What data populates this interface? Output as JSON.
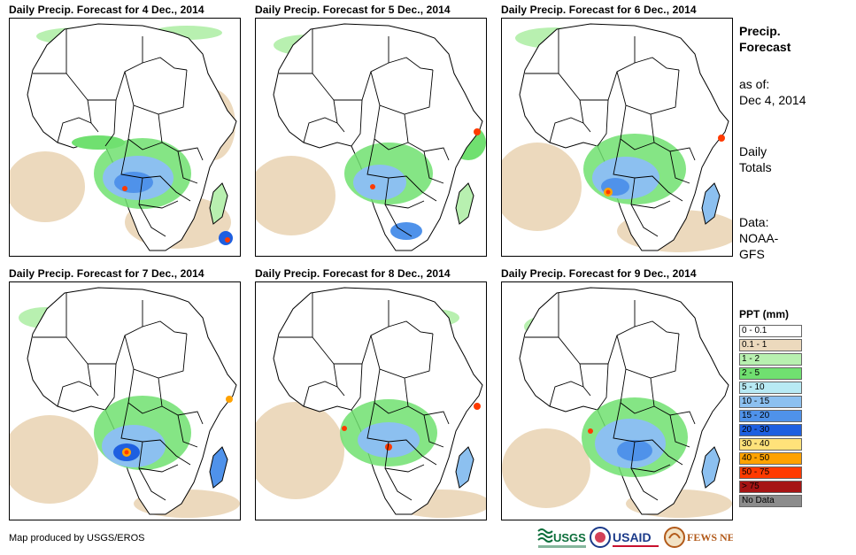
{
  "panels": [
    {
      "title": "Daily Precip. Forecast for 4 Dec., 2014"
    },
    {
      "title": "Daily Precip. Forecast for 5 Dec., 2014"
    },
    {
      "title": "Daily Precip. Forecast for 6 Dec., 2014"
    },
    {
      "title": "Daily Precip. Forecast for 7 Dec., 2014"
    },
    {
      "title": "Daily Precip. Forecast for 8 Dec., 2014"
    },
    {
      "title": "Daily Precip. Forecast for 9 Dec., 2014"
    }
  ],
  "sidebar": {
    "heading_line1": "Precip.",
    "heading_line2": "Forecast",
    "asof_line1": "as of:",
    "asof_line2": "Dec 4, 2014",
    "totals_line1": "Daily",
    "totals_line2": "Totals",
    "data_line1": "Data:",
    "data_line2": "NOAA-",
    "data_line3": "GFS"
  },
  "legend": {
    "title": "PPT (mm)",
    "items": [
      {
        "label": "0 - 0.1",
        "color": "#ffffff"
      },
      {
        "label": "0.1 - 1",
        "color": "#ecd9bd"
      },
      {
        "label": "1 - 2",
        "color": "#b8f0b0"
      },
      {
        "label": "2 - 5",
        "color": "#70e070"
      },
      {
        "label": "5 - 10",
        "color": "#b8eaf4"
      },
      {
        "label": "10 - 15",
        "color": "#8cc0f0"
      },
      {
        "label": "15 - 20",
        "color": "#4f92ea"
      },
      {
        "label": "20 - 30",
        "color": "#1e5fe0"
      },
      {
        "label": "30 - 40",
        "color": "#ffe27a"
      },
      {
        "label": "40 - 50",
        "color": "#ffa200"
      },
      {
        "label": "50 - 75",
        "color": "#ff3a00"
      },
      {
        "label": "> 75",
        "color": "#a61414"
      },
      {
        "label": "No Data",
        "color": "#8c8c8c"
      }
    ]
  },
  "footer": {
    "credit": "Map produced by USGS/EROS"
  },
  "logos": {
    "usgs": "USGS",
    "usaid": "USAID",
    "fewsnet": "FEWS NET"
  }
}
